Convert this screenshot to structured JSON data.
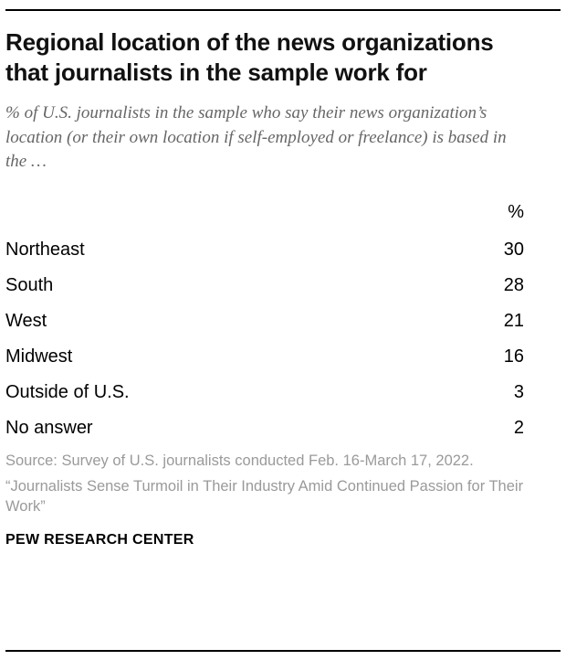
{
  "header": {
    "title": "Regional location of the news organizations that journalists in the sample work for",
    "subtitle": "% of U.S. journalists in the sample who say their news organization’s location (or their own location if self-employed or freelance) is based in the …"
  },
  "chart_data": {
    "type": "table",
    "title": "Regional location of the news organizations that journalists in the sample work for",
    "subtitle": "% of U.S. journalists in the sample who say their news organization’s location (or their own location if self-employed or freelance) is based in the …",
    "columns": [
      "",
      "%"
    ],
    "categories": [
      "Northeast",
      "South",
      "West",
      "Midwest",
      "Outside of U.S.",
      "No answer"
    ],
    "values": [
      30,
      28,
      21,
      16,
      3,
      2
    ]
  },
  "table": {
    "pct_header": "%",
    "rows": [
      {
        "label": "Northeast",
        "value": "30"
      },
      {
        "label": "South",
        "value": "28"
      },
      {
        "label": "West",
        "value": "21"
      },
      {
        "label": "Midwest",
        "value": "16"
      },
      {
        "label": "Outside of U.S.",
        "value": "3"
      },
      {
        "label": "No answer",
        "value": "2"
      }
    ]
  },
  "footer": {
    "source_line1": "Source: Survey of U.S. journalists conducted Feb. 16-March 17, 2022.",
    "source_line2": "“Journalists Sense Turmoil in Their Industry Amid Continued Passion for Their Work”",
    "brand": "PEW RESEARCH CENTER"
  }
}
